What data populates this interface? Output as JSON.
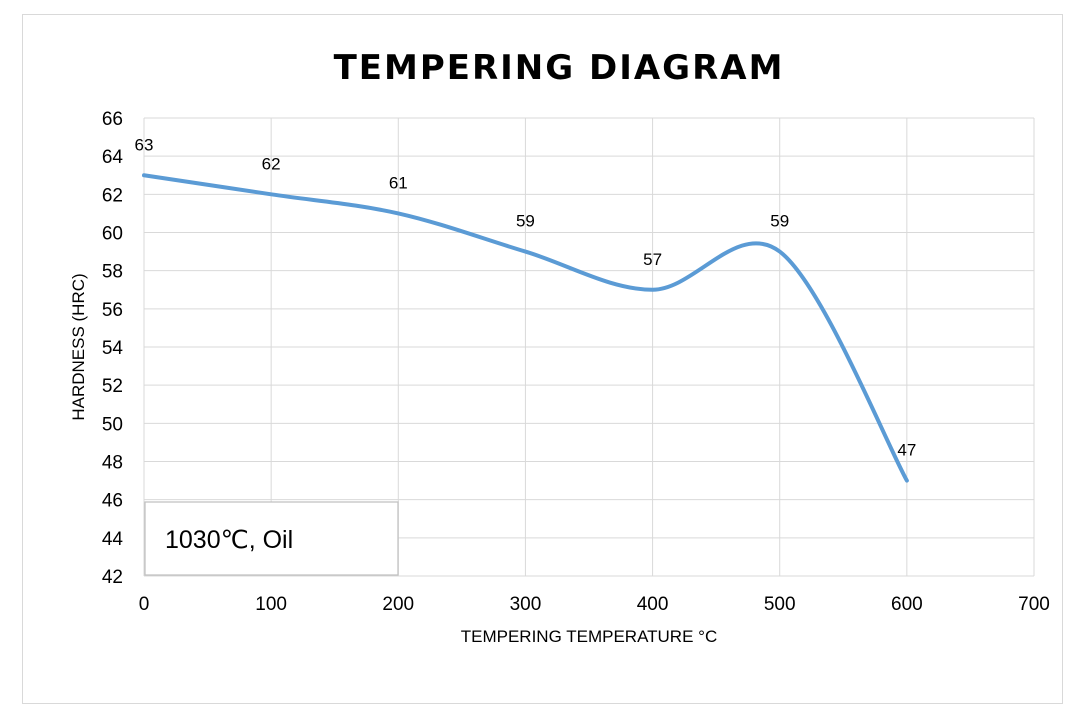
{
  "chart_data": {
    "type": "line",
    "title": "TEMPERING DIAGRAM",
    "xlabel": "TEMPERING TEMPERATURE °C",
    "ylabel": "HARDNESS (HRC)",
    "xlim": [
      0,
      700
    ],
    "ylim": [
      42,
      66
    ],
    "xticks": [
      0,
      100,
      200,
      300,
      400,
      500,
      600,
      700
    ],
    "yticks": [
      42,
      44,
      46,
      48,
      50,
      52,
      54,
      56,
      58,
      60,
      62,
      64,
      66
    ],
    "grid": true,
    "series": [
      {
        "name": "Hardness",
        "color": "#5b9bd5",
        "x": [
          0,
          100,
          200,
          300,
          400,
          500,
          600
        ],
        "y": [
          63,
          62,
          61,
          59,
          57,
          59,
          47
        ],
        "labels": [
          "63",
          "62",
          "61",
          "59",
          "57",
          "59",
          "47"
        ]
      }
    ],
    "annotation": "1030℃, Oil"
  }
}
